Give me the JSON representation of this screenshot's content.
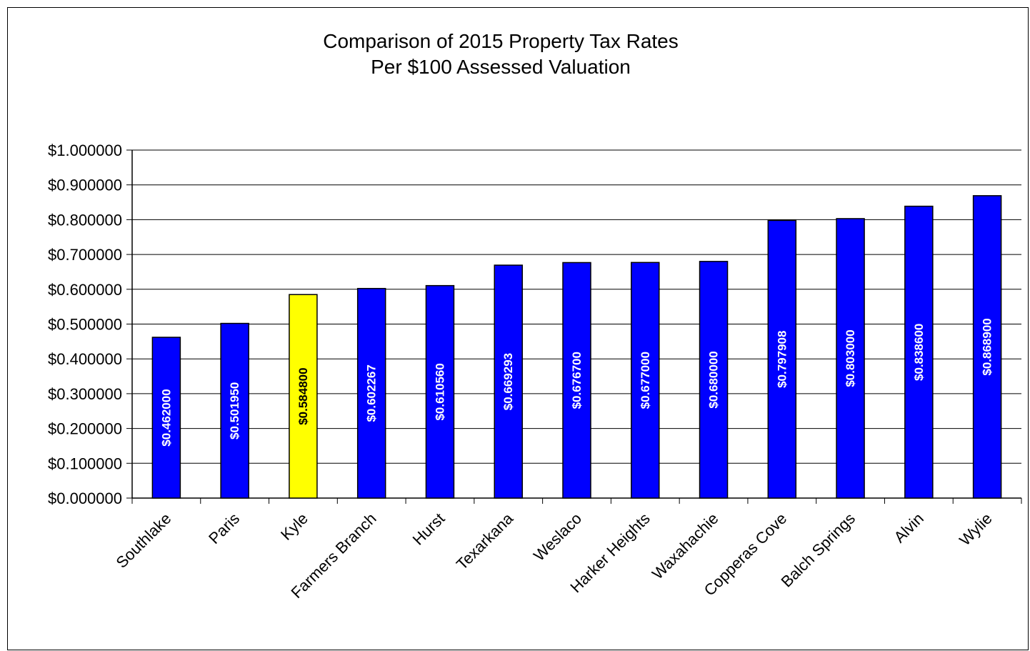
{
  "chart_data": {
    "type": "bar",
    "title": [
      "Comparison of 2015 Property Tax Rates",
      "Per $100 Assessed Valuation"
    ],
    "categories": [
      "Southlake",
      "Paris",
      "Kyle",
      "Farmers Branch",
      "Hurst",
      "Texarkana",
      "Weslaco",
      "Harker Heights",
      "Waxahachie",
      "Copperas Cove",
      "Balch Springs",
      "Alvin",
      "Wylie"
    ],
    "values": [
      0.462,
      0.50195,
      0.5848,
      0.602267,
      0.61056,
      0.669293,
      0.6767,
      0.677,
      0.68,
      0.797908,
      0.803,
      0.8386,
      0.8689
    ],
    "data_labels": [
      "$0.462000",
      "$0.501950",
      "$0.584800",
      "$0.602267",
      "$0.610560",
      "$0.669293",
      "$0.676700",
      "$0.677000",
      "$0.680000",
      "$0.797908",
      "$0.803000",
      "$0.838600",
      "$0.868900"
    ],
    "ylim": [
      0,
      1.0
    ],
    "yticks": [
      "$0.000000",
      "$0.100000",
      "$0.200000",
      "$0.300000",
      "$0.400000",
      "$0.500000",
      "$0.600000",
      "$0.700000",
      "$0.800000",
      "$0.900000",
      "$1.000000"
    ],
    "grid": true,
    "legend": "none",
    "colors": {
      "bar_default": "#0000FF",
      "bar_highlight": "#FFFF00",
      "label_on_default": "#FFFFFF",
      "label_on_highlight": "#000000",
      "gridline": "#000000",
      "border": "#000000"
    },
    "highlight_category": "Kyle"
  }
}
